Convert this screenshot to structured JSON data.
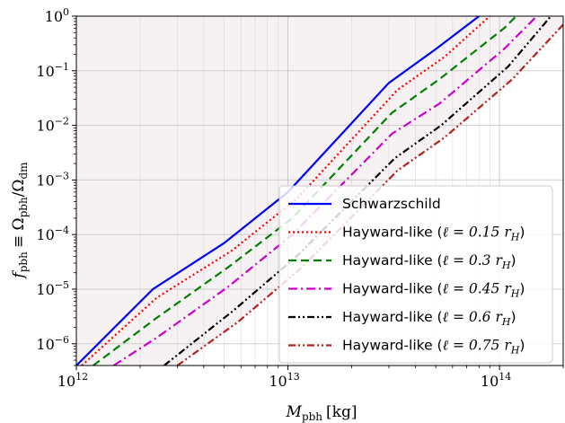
{
  "chart_data": {
    "type": "line",
    "title": "",
    "xlabel": {
      "main": "M",
      "sub": "pbh",
      "unit": "[kg]"
    },
    "ylabel": {
      "main": "f",
      "sub": "pbh",
      "rest": "≡ Ω",
      "sub2": "pbh",
      "slash": "/Ω",
      "sub3": "dm"
    },
    "xscale": "log",
    "yscale": "log",
    "xlim": [
      1000000000000.0,
      200000000000000.0
    ],
    "ylim": [
      4e-07,
      1
    ],
    "grid": true,
    "legend_position": "lower-right",
    "x_ticks": [
      {
        "base": "10",
        "exp": "12",
        "value": 1000000000000.0
      },
      {
        "base": "10",
        "exp": "13",
        "value": 10000000000000.0
      },
      {
        "base": "10",
        "exp": "14",
        "value": 100000000000000.0
      }
    ],
    "y_ticks": [
      {
        "base": "10",
        "exp": "0",
        "value": 1
      },
      {
        "base": "10",
        "exp": "−1",
        "value": 0.1
      },
      {
        "base": "10",
        "exp": "−2",
        "value": 0.01
      },
      {
        "base": "10",
        "exp": "−3",
        "value": 0.001
      },
      {
        "base": "10",
        "exp": "−4",
        "value": 0.0001
      },
      {
        "base": "10",
        "exp": "−5",
        "value": 1e-05
      },
      {
        "base": "10",
        "exp": "−6",
        "value": 1e-06
      }
    ],
    "series": [
      {
        "name": "Schwarzschild",
        "color": "#0000ff",
        "dash": "solid",
        "fill": "#7b4a9e",
        "points": [
          [
            1000000000000.0,
            4e-07
          ],
          [
            2300000000000.0,
            1e-05
          ],
          [
            5000000000000.0,
            7e-05
          ],
          [
            10000000000000.0,
            0.0006
          ],
          [
            30000000000000.0,
            0.06
          ],
          [
            50000000000000.0,
            0.25
          ],
          [
            80000000000000.0,
            1
          ]
        ]
      },
      {
        "name": "Hayward-like (ℓ = 0.15 r_H)",
        "label_text": "Hayward-like (",
        "label_math": "ℓ = 0.15 r",
        "label_sub": "H",
        "label_end": ")",
        "color": "#ff0000",
        "dash": "dotted",
        "fill": "#8f6f73",
        "points": [
          [
            1060000000000.0,
            4e-07
          ],
          [
            2400000000000.0,
            7e-06
          ],
          [
            5400000000000.0,
            5e-05
          ],
          [
            11000000000000.0,
            0.00045
          ],
          [
            33000000000000.0,
            0.045
          ],
          [
            55000000000000.0,
            0.18
          ],
          [
            90000000000000.0,
            1
          ]
        ]
      },
      {
        "name": "Hayward-like (ℓ = 0.3 r_H)",
        "label_text": "Hayward-like (",
        "label_math": "ℓ = 0.3 r",
        "label_sub": "H",
        "label_end": ")",
        "color": "#008000",
        "dash": "dashed",
        "fill": "#b790b0",
        "points": [
          [
            1200000000000.0,
            4e-07
          ],
          [
            2400000000000.0,
            3e-06
          ],
          [
            5200000000000.0,
            2.5e-05
          ],
          [
            10500000000000.0,
            0.0002
          ],
          [
            31000000000000.0,
            0.017
          ],
          [
            52000000000000.0,
            0.07
          ],
          [
            105000000000000.0,
            0.6
          ],
          [
            120000000000000.0,
            1
          ]
        ]
      },
      {
        "name": "Hayward-like (ℓ = 0.45 r_H)",
        "label_text": "Hayward-like (",
        "label_math": "ℓ = 0.45 r",
        "label_sub": "H",
        "label_end": ")",
        "color": "#cc00cc",
        "dash": "dashdot",
        "fill": "#e8b0e4",
        "points": [
          [
            1500000000000.0,
            4e-07
          ],
          [
            2400000000000.0,
            1.3e-06
          ],
          [
            5200000000000.0,
            1.1e-05
          ],
          [
            10500000000000.0,
            0.0001
          ],
          [
            31000000000000.0,
            0.007
          ],
          [
            52000000000000.0,
            0.025
          ],
          [
            105000000000000.0,
            0.25
          ],
          [
            150000000000000.0,
            1
          ]
        ]
      },
      {
        "name": "Hayward-like (ℓ = 0.6 r_H)",
        "label_text": "Hayward-like (",
        "label_math": "ℓ = 0.6 r",
        "label_sub": "H",
        "label_end": ")",
        "color": "#000000",
        "dash": "dashdotdot",
        "fill": "#e2dcdf",
        "points": [
          [
            2600000000000.0,
            4e-07
          ],
          [
            5500000000000.0,
            4e-06
          ],
          [
            11000000000000.0,
            4e-05
          ],
          [
            32000000000000.0,
            0.0025
          ],
          [
            53000000000000.0,
            0.01
          ],
          [
            110000000000000.0,
            0.12
          ],
          [
            175000000000000.0,
            1
          ]
        ]
      },
      {
        "name": "Hayward-like (ℓ = 0.75 r_H)",
        "label_text": "Hayward-like (",
        "label_math": "ℓ = 0.75 r",
        "label_sub": "H",
        "label_end": ")",
        "color": "#b22222",
        "dash": "dashdotdot",
        "fill": "#f6f2f3",
        "points": [
          [
            3000000000000.0,
            4e-07
          ],
          [
            5800000000000.0,
            2.5e-06
          ],
          [
            11500000000000.0,
            2.4e-05
          ],
          [
            33000000000000.0,
            0.0015
          ],
          [
            55000000000000.0,
            0.006
          ],
          [
            115000000000000.0,
            0.07
          ],
          [
            200000000000000.0,
            0.7
          ]
        ]
      }
    ]
  }
}
